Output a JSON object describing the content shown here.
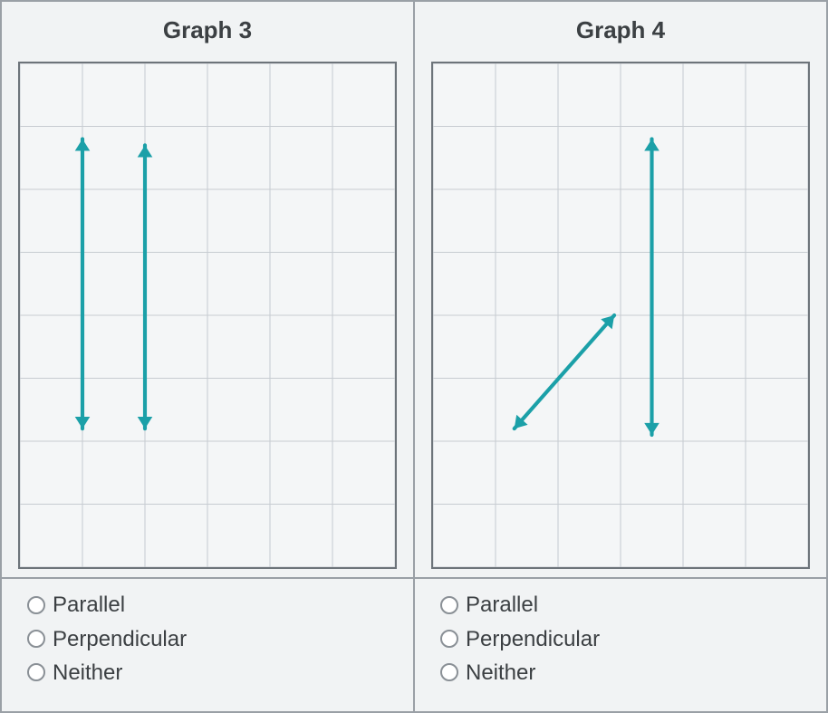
{
  "background_color": "#f1f3f4",
  "panel_border_color": "#9aa0a6",
  "graph_border_color": "#6d747a",
  "grid_line_color": "#c7ccd1",
  "arrow_color": "#1ba0a8",
  "arrow_stroke_width": 6,
  "arrow_head_size": 14,
  "title_fontsize": 26,
  "answer_fontsize": 24,
  "panels": [
    {
      "title": "Graph 3",
      "grid": {
        "cols": 6,
        "rows": 8
      },
      "lines": [
        {
          "x1": 1.0,
          "y1": 1.2,
          "x2": 1.0,
          "y2": 5.8,
          "heads": "both"
        },
        {
          "x1": 2.0,
          "y1": 1.3,
          "x2": 2.0,
          "y2": 5.8,
          "heads": "both"
        }
      ],
      "answers": [
        {
          "label": "Parallel",
          "selected": false
        },
        {
          "label": "Perpendicular",
          "selected": false
        },
        {
          "label": "Neither",
          "selected": false
        }
      ]
    },
    {
      "title": "Graph 4",
      "grid": {
        "cols": 6,
        "rows": 8
      },
      "lines": [
        {
          "x1": 3.5,
          "y1": 1.2,
          "x2": 3.5,
          "y2": 5.9,
          "heads": "both"
        },
        {
          "x1": 1.3,
          "y1": 5.8,
          "x2": 2.9,
          "y2": 4.0,
          "heads": "both"
        }
      ],
      "answers": [
        {
          "label": "Parallel",
          "selected": false
        },
        {
          "label": "Perpendicular",
          "selected": false
        },
        {
          "label": "Neither",
          "selected": false
        }
      ]
    }
  ]
}
